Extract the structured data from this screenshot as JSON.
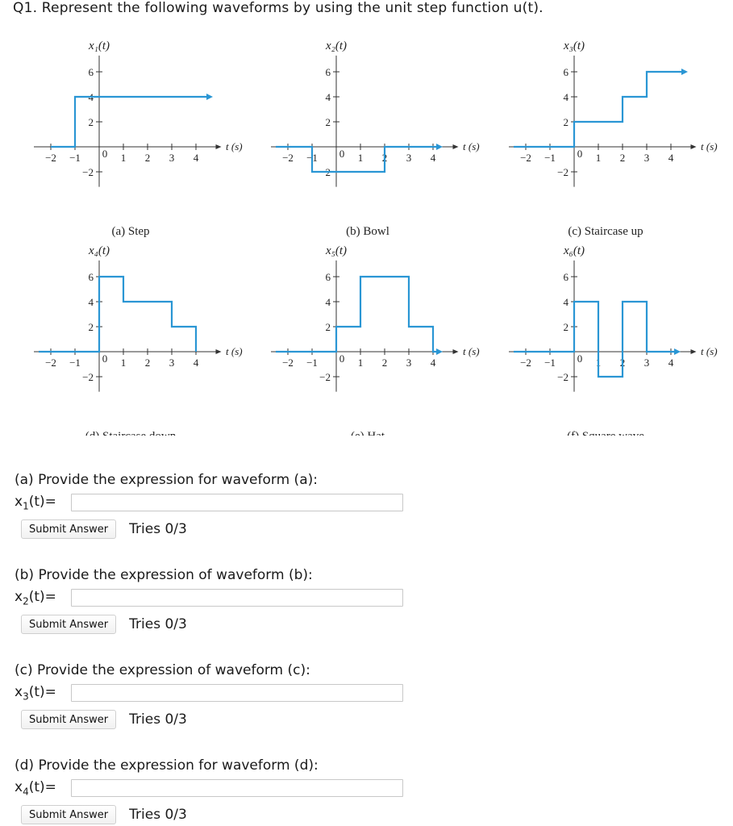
{
  "question_title": "Q1. Represent the following waveforms by using the unit step function u(t).",
  "figure": {
    "signal_color": "#2a96d4",
    "x_ticks": [
      "−2",
      "−1",
      "0",
      "1",
      "2",
      "3",
      "4"
    ],
    "time_unit_label": "t (s)",
    "panels": [
      {
        "y_label": "x₁(t)",
        "caption": "(a) Step",
        "y_ticks": [
          "6",
          "4",
          "2",
          "−2"
        ],
        "signal": [
          [
            -2,
            0
          ],
          [
            -1,
            0
          ],
          [
            -1,
            4
          ],
          [
            4.6,
            4
          ]
        ]
      },
      {
        "y_label": "x₂(t)",
        "caption": "(b) Bowl",
        "y_ticks": [
          "6",
          "4",
          "2",
          "−2"
        ],
        "signal": [
          [
            -2.5,
            0
          ],
          [
            -1,
            0
          ],
          [
            -1,
            -2
          ],
          [
            2,
            -2
          ],
          [
            2,
            0
          ],
          [
            4.3,
            0
          ]
        ]
      },
      {
        "y_label": "x₃(t)",
        "caption": "(c) Staircase up",
        "y_ticks": [
          "6",
          "4",
          "2",
          "−2"
        ],
        "signal": [
          [
            -2.5,
            0
          ],
          [
            0,
            0
          ],
          [
            0,
            2
          ],
          [
            2,
            2
          ],
          [
            2,
            4
          ],
          [
            3,
            4
          ],
          [
            3,
            6
          ],
          [
            4.6,
            6
          ]
        ]
      },
      {
        "y_label": "x₄(t)",
        "caption": "(d) Staircase down",
        "y_ticks": [
          "6",
          "4",
          "2",
          "−2"
        ],
        "signal": [
          [
            -2.5,
            0
          ],
          [
            0,
            0
          ],
          [
            0,
            6
          ],
          [
            1,
            6
          ],
          [
            1,
            4
          ],
          [
            3,
            4
          ],
          [
            3,
            2
          ],
          [
            4,
            2
          ],
          [
            4,
            0
          ]
        ]
      },
      {
        "y_label": "x₅(t)",
        "caption": "(e) Hat",
        "y_ticks": [
          "6",
          "4",
          "2",
          "−2"
        ],
        "signal": [
          [
            -2.5,
            0
          ],
          [
            0,
            0
          ],
          [
            0,
            2
          ],
          [
            1,
            2
          ],
          [
            1,
            6
          ],
          [
            3,
            6
          ],
          [
            3,
            2
          ],
          [
            4,
            2
          ],
          [
            4,
            0
          ],
          [
            4.3,
            0
          ]
        ]
      },
      {
        "y_label": "x₆(t)",
        "caption": "(f) Square wave",
        "y_ticks": [
          "6",
          "4",
          "2",
          "−2"
        ],
        "signal": [
          [
            -2.5,
            0
          ],
          [
            0,
            0
          ],
          [
            0,
            4
          ],
          [
            1,
            4
          ],
          [
            1,
            -2
          ],
          [
            2,
            -2
          ],
          [
            2,
            4
          ],
          [
            3,
            4
          ],
          [
            3,
            0
          ],
          [
            4.3,
            0
          ]
        ]
      }
    ]
  },
  "parts": [
    {
      "prompt": "(a) Provide the expression for waveform (a):",
      "label": "x1(t)=",
      "value": "",
      "submit_label": "Submit Answer",
      "tries": "Tries 0/3"
    },
    {
      "prompt": "(b) Provide the expression of waveform (b):",
      "label": "x2(t)=",
      "value": "",
      "submit_label": "Submit Answer",
      "tries": "Tries 0/3"
    },
    {
      "prompt": "(c) Provide the expression of waveform (c):",
      "label": "x3(t)=",
      "value": "",
      "submit_label": "Submit Answer",
      "tries": "Tries 0/3"
    },
    {
      "prompt": "(d) Provide the expression for waveform (d):",
      "label": "x4(t)=",
      "value": "",
      "submit_label": "Submit Answer",
      "tries": "Tries 0/3"
    }
  ]
}
